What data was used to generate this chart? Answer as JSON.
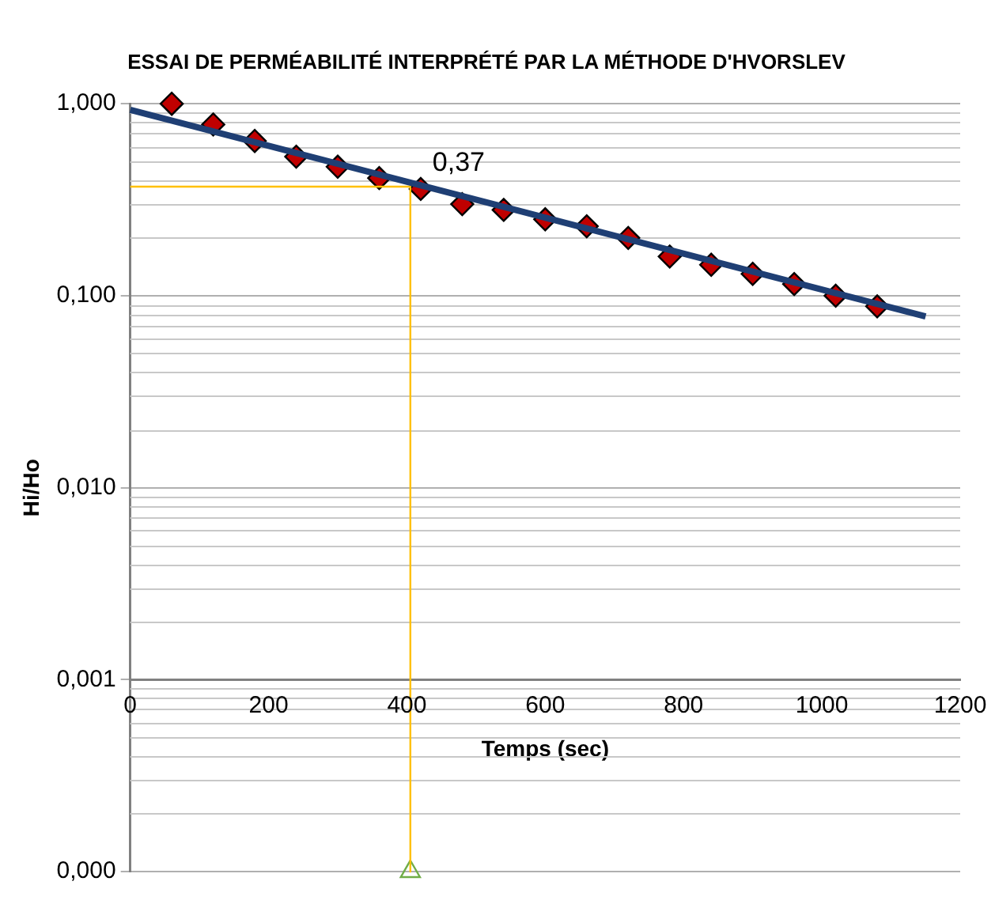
{
  "chart_data": {
    "type": "scatter",
    "title": "ESSAI DE PERMÉABILITÉ INTERPRÉTÉ PAR LA MÉTHODE D'HVORSLEV",
    "xlabel": "Temps (sec)",
    "ylabel": "Hi/Ho",
    "x": [
      60,
      120,
      180,
      240,
      300,
      360,
      420,
      480,
      540,
      600,
      660,
      720,
      780,
      840,
      900,
      960,
      1020,
      1080
    ],
    "series": [
      {
        "color": "#c00000",
        "marker": "diamond",
        "values": [
          1.0,
          0.78,
          0.64,
          0.53,
          0.47,
          0.41,
          0.36,
          0.3,
          0.28,
          0.25,
          0.23,
          0.2,
          0.16,
          0.145,
          0.13,
          0.115,
          0.1,
          0.088
        ]
      },
      {
        "type": "line",
        "color": "#1f3f74",
        "x": [
          0,
          1150
        ],
        "values": [
          0.93,
          0.078
        ]
      },
      {
        "type": "line",
        "color": "#ffc000",
        "x": [
          0,
          405,
          405
        ],
        "values": [
          0.37,
          0.37,
          0.0001
        ]
      },
      {
        "type": "scatter",
        "color": "#70ad47",
        "marker": "triangle",
        "x": [
          405
        ],
        "values": [
          0.0001
        ]
      }
    ],
    "annotations": [
      {
        "text": "0,37",
        "x": 405,
        "y": 0.37
      }
    ],
    "log": "y",
    "grid": "y",
    "legend": false,
    "xlim": [
      0,
      1200
    ],
    "xticks": [
      0,
      200,
      400,
      600,
      800,
      1000,
      1200
    ],
    "ylim": [
      0.0001,
      1
    ],
    "yticks": [
      {
        "value": 0.0001,
        "label": "0,000"
      },
      {
        "value": 0.001,
        "label": "0,001"
      },
      {
        "value": 0.01,
        "label": "0,010"
      },
      {
        "value": 0.1,
        "label": "0,100"
      },
      {
        "value": 1,
        "label": "1,000"
      }
    ]
  }
}
